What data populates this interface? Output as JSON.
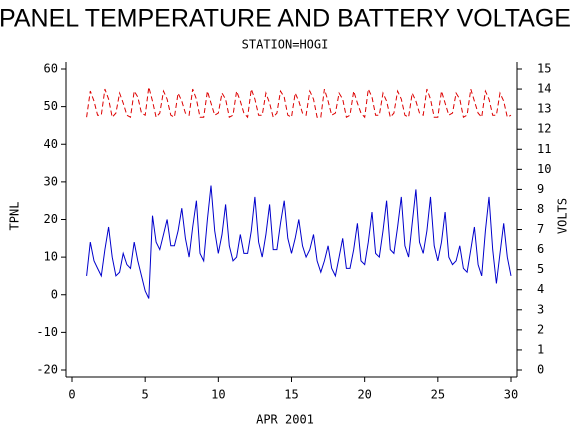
{
  "chart_data": {
    "type": "line",
    "title": "PANEL TEMPERATURE AND BATTERY VOLTAGE",
    "subtitle": "STATION=HOGI",
    "xlabel": "APR 2001",
    "ylabel": "TPNL",
    "y2label": "VOLTS",
    "xlim": [
      0,
      30
    ],
    "xticks": [
      0,
      5,
      10,
      15,
      20,
      25,
      30
    ],
    "ylim": [
      -20,
      60
    ],
    "yticks": [
      -20,
      -10,
      0,
      10,
      20,
      30,
      40,
      50,
      60
    ],
    "y2lim": [
      0,
      15
    ],
    "y2ticks": [
      0,
      1,
      2,
      3,
      4,
      5,
      6,
      7,
      8,
      9,
      10,
      11,
      12,
      13,
      14,
      15
    ],
    "x": [
      1,
      1.25,
      1.5,
      1.75,
      2,
      2.25,
      2.5,
      2.75,
      3,
      3.25,
      3.5,
      3.75,
      4,
      4.25,
      4.5,
      4.75,
      5,
      5.25,
      5.5,
      5.75,
      6,
      6.25,
      6.5,
      6.75,
      7,
      7.25,
      7.5,
      7.75,
      8,
      8.25,
      8.5,
      8.75,
      9,
      9.25,
      9.5,
      9.75,
      10,
      10.25,
      10.5,
      10.75,
      11,
      11.25,
      11.5,
      11.75,
      12,
      12.25,
      12.5,
      12.75,
      13,
      13.25,
      13.5,
      13.75,
      14,
      14.25,
      14.5,
      14.75,
      15,
      15.25,
      15.5,
      15.75,
      16,
      16.25,
      16.5,
      16.75,
      17,
      17.25,
      17.5,
      17.75,
      18,
      18.25,
      18.5,
      18.75,
      19,
      19.25,
      19.5,
      19.75,
      20,
      20.25,
      20.5,
      20.75,
      21,
      21.25,
      21.5,
      21.75,
      22,
      22.25,
      22.5,
      22.75,
      23,
      23.25,
      23.5,
      23.75,
      24,
      24.25,
      24.5,
      24.75,
      25,
      25.25,
      25.5,
      25.75,
      26,
      26.25,
      26.5,
      26.75,
      27,
      27.25,
      27.5,
      27.75,
      28,
      28.25,
      28.5,
      28.75,
      29,
      29.25,
      29.5,
      29.75,
      30
    ],
    "series": [
      {
        "color": "#0000cc",
        "dash": false,
        "values": [
          5,
          14,
          9,
          7,
          5,
          12,
          18,
          10,
          5,
          6,
          11,
          8,
          7,
          14,
          9,
          5,
          1,
          -1,
          21,
          14,
          12,
          16,
          20,
          13,
          13,
          17,
          23,
          15,
          10,
          18,
          25,
          11,
          9,
          20,
          29,
          17,
          11,
          16,
          24,
          13,
          9,
          10,
          16,
          11,
          11,
          17,
          26,
          14,
          10,
          16,
          24,
          12,
          12,
          19,
          25,
          15,
          11,
          15,
          20,
          13,
          10,
          12,
          16,
          9,
          6,
          9,
          13,
          7,
          5,
          10,
          15,
          7,
          7,
          12,
          19,
          9,
          8,
          14,
          22,
          11,
          10,
          17,
          25,
          12,
          11,
          18,
          26,
          13,
          10,
          19,
          28,
          14,
          11,
          17,
          26,
          13,
          9,
          14,
          22,
          10,
          8,
          9,
          13,
          7,
          6,
          12,
          18,
          8,
          5,
          17,
          26,
          12,
          3,
          11,
          19,
          10,
          5
        ]
      },
      {
        "color": "#dd0000",
        "dash": true,
        "axis": "y2",
        "values": [
          12.6,
          13.9,
          13.4,
          12.7,
          12.7,
          14,
          13.5,
          12.6,
          12.8,
          13.8,
          13.3,
          12.7,
          12.6,
          13.9,
          13.6,
          12.8,
          12.7,
          14.1,
          13.4,
          12.6,
          12.8,
          13.9,
          13.5,
          12.7,
          12.6,
          13.8,
          13.4,
          12.8,
          12.7,
          14,
          13.5,
          12.6,
          12.6,
          13.9,
          13.3,
          12.7,
          12.8,
          13.8,
          13.5,
          12.6,
          12.7,
          13.9,
          13.4,
          12.8,
          12.6,
          14,
          13.5,
          12.7,
          12.7,
          13.8,
          13.3,
          12.6,
          12.8,
          13.9,
          13.6,
          12.7,
          12.6,
          13.8,
          13.4,
          12.8,
          12.7,
          13.9,
          13.5,
          12.6,
          12.6,
          14,
          13.4,
          12.7,
          12.8,
          13.8,
          13.5,
          12.6,
          12.7,
          13.9,
          13.3,
          12.8,
          12.6,
          14,
          13.6,
          12.7,
          12.7,
          13.8,
          13.4,
          12.6,
          12.8,
          13.9,
          13.5,
          12.7,
          12.6,
          13.8,
          13.4,
          12.8,
          12.7,
          14,
          13.5,
          12.6,
          12.6,
          13.9,
          13.3,
          12.7,
          12.8,
          13.8,
          13.5,
          12.6,
          12.7,
          14,
          13.4,
          12.8,
          12.6,
          13.9,
          13.5,
          12.7,
          12.7,
          13.8,
          13.4,
          12.6,
          12.7
        ]
      }
    ]
  }
}
